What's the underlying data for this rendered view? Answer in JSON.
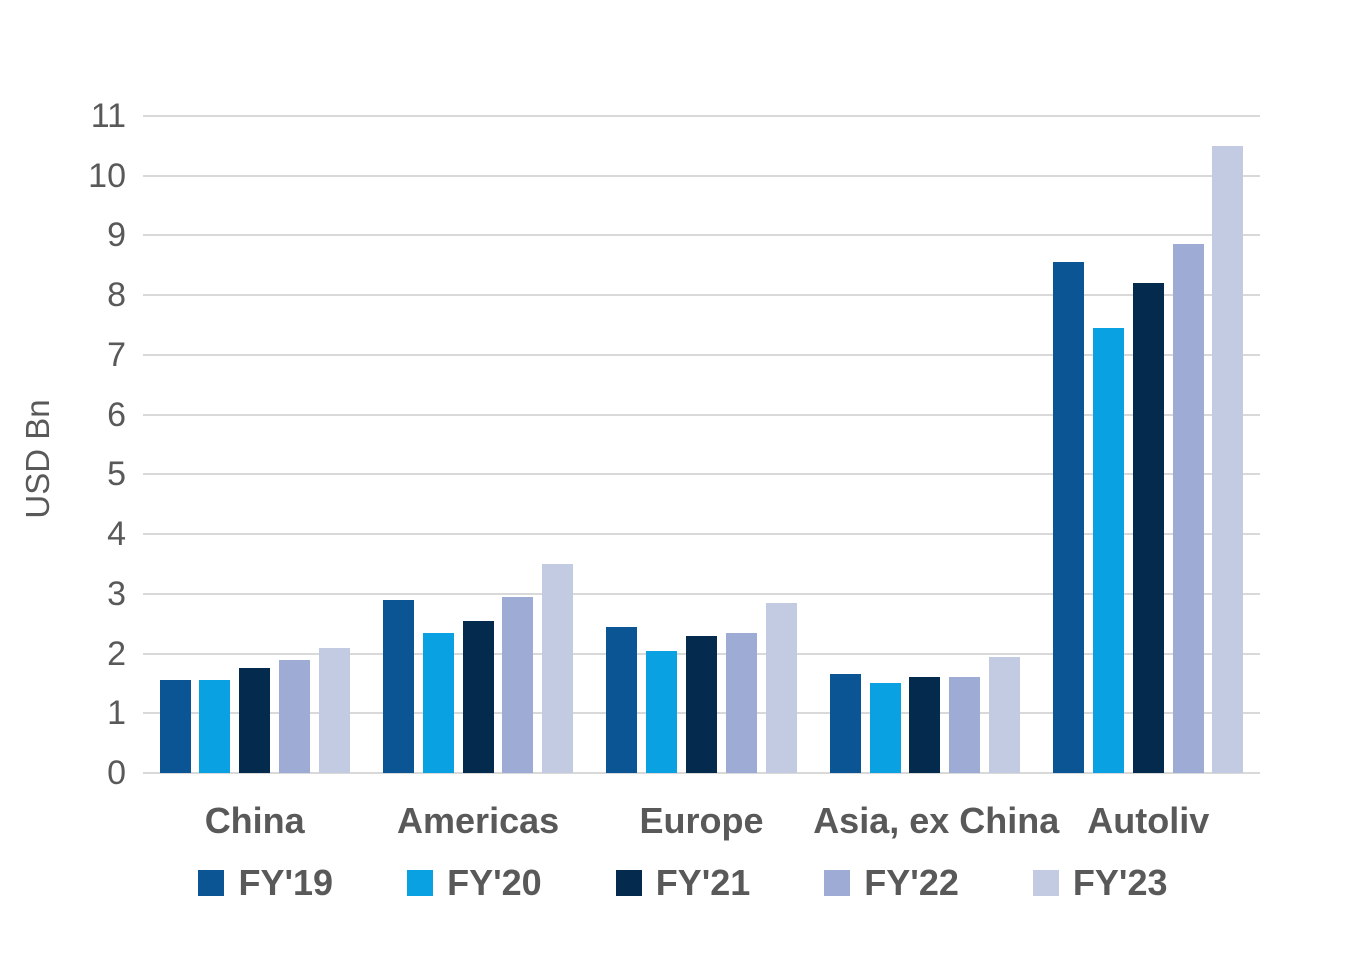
{
  "text_color": "#595959",
  "gridline_color": "#d9d9d9",
  "chart_data": {
    "type": "bar",
    "title": "",
    "xlabel": "",
    "ylabel": "USD Bn",
    "ylim": [
      0,
      11
    ],
    "yticks": [
      "0",
      "1",
      "2",
      "3",
      "4",
      "5",
      "6",
      "7",
      "8",
      "9",
      "10",
      "11"
    ],
    "grid": true,
    "legend_position": "bottom",
    "categories": [
      "China",
      "Americas",
      "Europe",
      "Asia, ex China",
      "Autoliv"
    ],
    "series": [
      {
        "name": "FY'19",
        "color": "#0B5594",
        "values": [
          1.55,
          2.9,
          2.45,
          1.65,
          8.55
        ]
      },
      {
        "name": "FY'20",
        "color": "#09A1E2",
        "values": [
          1.55,
          2.35,
          2.05,
          1.5,
          7.45
        ]
      },
      {
        "name": "FY'21",
        "color": "#042B4D",
        "values": [
          1.75,
          2.55,
          2.3,
          1.6,
          8.2
        ]
      },
      {
        "name": "FY'22",
        "color": "#9EABD5",
        "values": [
          1.9,
          2.95,
          2.35,
          1.6,
          8.85
        ]
      },
      {
        "name": "FY'23",
        "color": "#C3CBE2",
        "values": [
          2.1,
          3.5,
          2.85,
          1.95,
          10.5
        ]
      }
    ]
  }
}
